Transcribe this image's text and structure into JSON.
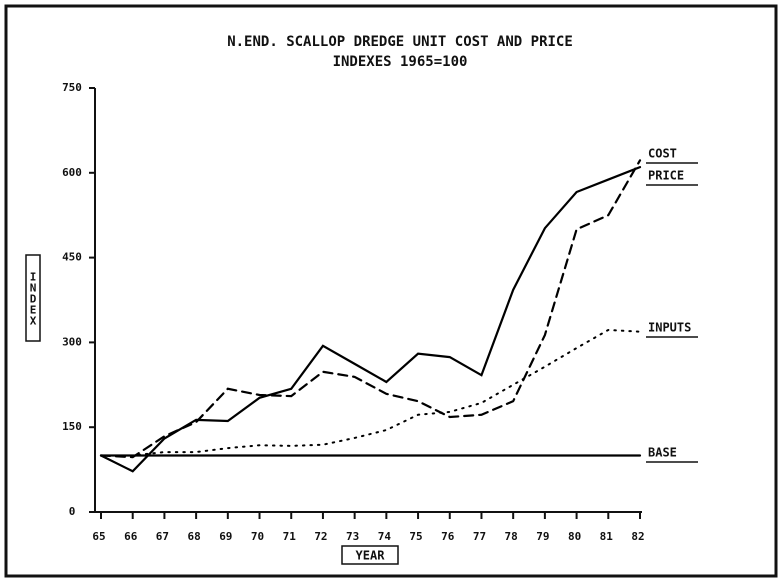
{
  "chart_data": {
    "type": "line",
    "title": "N.END. SCALLOP DREDGE UNIT COST AND PRICE",
    "subtitle": "INDEXES 1965=100",
    "y_label": "INDEX",
    "x_label": "YEAR",
    "categories": [
      "65",
      "66",
      "67",
      "68",
      "69",
      "70",
      "71",
      "72",
      "73",
      "74",
      "75",
      "76",
      "77",
      "78",
      "79",
      "80",
      "81",
      "82"
    ],
    "ylim": [
      0,
      750
    ],
    "yticks": [
      0,
      150,
      300,
      450,
      600,
      750
    ],
    "grid": false,
    "series": [
      {
        "name": "COST",
        "color": "#000000",
        "style": "solid",
        "values": [
          100,
          72,
          130,
          163,
          161,
          202,
          218,
          294,
          262,
          230,
          280,
          274,
          242,
          393,
          502,
          566,
          588,
          610
        ]
      },
      {
        "name": "PRICE",
        "color": "#000000",
        "style": "dashed",
        "values": [
          100,
          97,
          134,
          159,
          218,
          207,
          205,
          248,
          239,
          209,
          196,
          168,
          172,
          196,
          313,
          500,
          525,
          622
        ]
      },
      {
        "name": "INPUTS",
        "color": "#000000",
        "style": "dotted",
        "values": [
          100,
          100,
          106,
          106,
          113,
          118,
          117,
          119,
          131,
          145,
          172,
          177,
          193,
          225,
          257,
          290,
          322,
          319
        ]
      },
      {
        "name": "BASE",
        "color": "#000000",
        "style": "solid",
        "values": [
          100,
          100,
          100,
          100,
          100,
          100,
          100,
          100,
          100,
          100,
          100,
          100,
          100,
          100,
          100,
          100,
          100,
          100
        ]
      }
    ]
  }
}
